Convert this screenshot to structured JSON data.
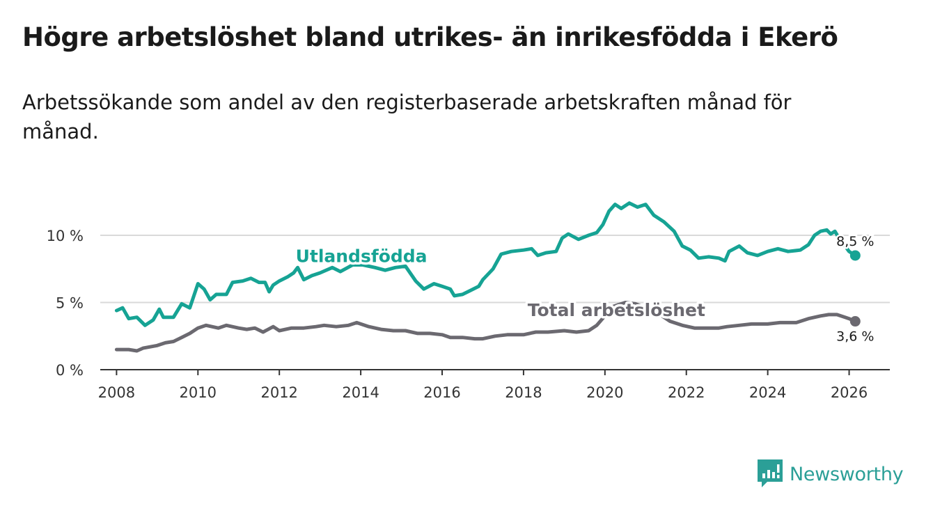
{
  "title": "Högre arbetslöshet bland utrikes- än inrikesfödda i Ekerö",
  "subtitle": "Arbetssökande som andel av den registerbaserade arbetskraften månad för månad.",
  "brand": {
    "name": "Newsworthy",
    "color": "#2b9f97"
  },
  "chart_data": {
    "type": "line",
    "title": "Högre arbetslöshet bland utrikes- än inrikesfödda i Ekerö",
    "xlabel": "",
    "ylabel": "",
    "xlim": [
      2007.6,
      2027.0
    ],
    "ylim": [
      0,
      13
    ],
    "grid": true,
    "x_ticks": [
      2008,
      2010,
      2012,
      2014,
      2016,
      2018,
      2020,
      2022,
      2024,
      2026
    ],
    "x_tick_labels": [
      "2008",
      "2010",
      "2012",
      "2014",
      "2016",
      "2018",
      "2020",
      "2022",
      "2024",
      "2026"
    ],
    "y_ticks": [
      0,
      5,
      10
    ],
    "y_tick_labels": [
      "0 %",
      "5 %",
      "10 %"
    ],
    "series": [
      {
        "name": "Utlandsfödda",
        "label": "Utlandsfödda",
        "color": "#16a394",
        "end_label": "8,5 %",
        "end_value": 8.5,
        "end_x": 2026.15,
        "points": [
          [
            2008.0,
            4.4
          ],
          [
            2008.15,
            4.6
          ],
          [
            2008.3,
            3.8
          ],
          [
            2008.5,
            3.9
          ],
          [
            2008.7,
            3.3
          ],
          [
            2008.9,
            3.7
          ],
          [
            2009.05,
            4.5
          ],
          [
            2009.15,
            3.9
          ],
          [
            2009.4,
            3.9
          ],
          [
            2009.6,
            4.9
          ],
          [
            2009.8,
            4.6
          ],
          [
            2010.0,
            6.4
          ],
          [
            2010.15,
            6.0
          ],
          [
            2010.3,
            5.2
          ],
          [
            2010.45,
            5.6
          ],
          [
            2010.7,
            5.6
          ],
          [
            2010.85,
            6.5
          ],
          [
            2011.1,
            6.6
          ],
          [
            2011.3,
            6.8
          ],
          [
            2011.5,
            6.5
          ],
          [
            2011.65,
            6.5
          ],
          [
            2011.75,
            5.8
          ],
          [
            2011.85,
            6.3
          ],
          [
            2012.0,
            6.6
          ],
          [
            2012.2,
            6.9
          ],
          [
            2012.35,
            7.2
          ],
          [
            2012.45,
            7.6
          ],
          [
            2012.6,
            6.7
          ],
          [
            2012.8,
            7.0
          ],
          [
            2013.0,
            7.2
          ],
          [
            2013.3,
            7.6
          ],
          [
            2013.5,
            7.3
          ],
          [
            2013.8,
            7.8
          ],
          [
            2014.05,
            7.8
          ],
          [
            2014.35,
            7.6
          ],
          [
            2014.6,
            7.4
          ],
          [
            2014.85,
            7.6
          ],
          [
            2015.1,
            7.7
          ],
          [
            2015.35,
            6.6
          ],
          [
            2015.55,
            6.0
          ],
          [
            2015.8,
            6.4
          ],
          [
            2016.0,
            6.2
          ],
          [
            2016.2,
            6.0
          ],
          [
            2016.3,
            5.5
          ],
          [
            2016.5,
            5.6
          ],
          [
            2016.7,
            5.9
          ],
          [
            2016.9,
            6.2
          ],
          [
            2017.0,
            6.7
          ],
          [
            2017.25,
            7.5
          ],
          [
            2017.45,
            8.6
          ],
          [
            2017.7,
            8.8
          ],
          [
            2018.0,
            8.9
          ],
          [
            2018.2,
            9.0
          ],
          [
            2018.35,
            8.5
          ],
          [
            2018.55,
            8.7
          ],
          [
            2018.8,
            8.8
          ],
          [
            2018.95,
            9.8
          ],
          [
            2019.1,
            10.1
          ],
          [
            2019.35,
            9.7
          ],
          [
            2019.6,
            10.0
          ],
          [
            2019.8,
            10.2
          ],
          [
            2019.95,
            10.8
          ],
          [
            2020.1,
            11.8
          ],
          [
            2020.25,
            12.3
          ],
          [
            2020.4,
            12.0
          ],
          [
            2020.6,
            12.4
          ],
          [
            2020.8,
            12.1
          ],
          [
            2021.0,
            12.3
          ],
          [
            2021.2,
            11.5
          ],
          [
            2021.45,
            11.0
          ],
          [
            2021.7,
            10.3
          ],
          [
            2021.9,
            9.2
          ],
          [
            2022.1,
            8.9
          ],
          [
            2022.3,
            8.3
          ],
          [
            2022.55,
            8.4
          ],
          [
            2022.8,
            8.3
          ],
          [
            2022.95,
            8.1
          ],
          [
            2023.05,
            8.8
          ],
          [
            2023.3,
            9.2
          ],
          [
            2023.5,
            8.7
          ],
          [
            2023.75,
            8.5
          ],
          [
            2024.0,
            8.8
          ],
          [
            2024.25,
            9.0
          ],
          [
            2024.5,
            8.8
          ],
          [
            2024.8,
            8.9
          ],
          [
            2025.0,
            9.3
          ],
          [
            2025.15,
            10.0
          ],
          [
            2025.3,
            10.3
          ],
          [
            2025.45,
            10.4
          ],
          [
            2025.55,
            10.1
          ],
          [
            2025.65,
            10.3
          ],
          [
            2025.75,
            9.8
          ],
          [
            2025.9,
            9.2
          ],
          [
            2026.0,
            8.8
          ],
          [
            2026.15,
            8.5
          ]
        ]
      },
      {
        "name": "Total arbetslöshet",
        "label": "Total arbetslöshet",
        "color": "#6b6970",
        "end_label": "3,6 %",
        "end_value": 3.6,
        "end_x": 2026.15,
        "points": [
          [
            2008.0,
            1.5
          ],
          [
            2008.3,
            1.5
          ],
          [
            2008.5,
            1.4
          ],
          [
            2008.65,
            1.6
          ],
          [
            2009.0,
            1.8
          ],
          [
            2009.2,
            2.0
          ],
          [
            2009.4,
            2.1
          ],
          [
            2009.6,
            2.4
          ],
          [
            2009.8,
            2.7
          ],
          [
            2010.0,
            3.1
          ],
          [
            2010.2,
            3.3
          ],
          [
            2010.5,
            3.1
          ],
          [
            2010.7,
            3.3
          ],
          [
            2011.0,
            3.1
          ],
          [
            2011.2,
            3.0
          ],
          [
            2011.4,
            3.1
          ],
          [
            2011.6,
            2.8
          ],
          [
            2011.85,
            3.2
          ],
          [
            2012.0,
            2.9
          ],
          [
            2012.3,
            3.1
          ],
          [
            2012.6,
            3.1
          ],
          [
            2012.9,
            3.2
          ],
          [
            2013.1,
            3.3
          ],
          [
            2013.4,
            3.2
          ],
          [
            2013.7,
            3.3
          ],
          [
            2013.9,
            3.5
          ],
          [
            2014.2,
            3.2
          ],
          [
            2014.5,
            3.0
          ],
          [
            2014.8,
            2.9
          ],
          [
            2015.1,
            2.9
          ],
          [
            2015.4,
            2.7
          ],
          [
            2015.7,
            2.7
          ],
          [
            2016.0,
            2.6
          ],
          [
            2016.2,
            2.4
          ],
          [
            2016.5,
            2.4
          ],
          [
            2016.8,
            2.3
          ],
          [
            2017.0,
            2.3
          ],
          [
            2017.3,
            2.5
          ],
          [
            2017.6,
            2.6
          ],
          [
            2018.0,
            2.6
          ],
          [
            2018.3,
            2.8
          ],
          [
            2018.6,
            2.8
          ],
          [
            2019.0,
            2.9
          ],
          [
            2019.3,
            2.8
          ],
          [
            2019.6,
            2.9
          ],
          [
            2019.8,
            3.3
          ],
          [
            2020.0,
            4.0
          ],
          [
            2020.2,
            4.7
          ],
          [
            2020.5,
            5.0
          ],
          [
            2020.75,
            4.9
          ],
          [
            2021.0,
            4.6
          ],
          [
            2021.3,
            4.2
          ],
          [
            2021.6,
            3.6
          ],
          [
            2021.9,
            3.3
          ],
          [
            2022.2,
            3.1
          ],
          [
            2022.5,
            3.1
          ],
          [
            2022.8,
            3.1
          ],
          [
            2023.0,
            3.2
          ],
          [
            2023.3,
            3.3
          ],
          [
            2023.6,
            3.4
          ],
          [
            2024.0,
            3.4
          ],
          [
            2024.3,
            3.5
          ],
          [
            2024.7,
            3.5
          ],
          [
            2025.0,
            3.8
          ],
          [
            2025.3,
            4.0
          ],
          [
            2025.5,
            4.1
          ],
          [
            2025.7,
            4.1
          ],
          [
            2025.9,
            3.9
          ],
          [
            2026.0,
            3.8
          ],
          [
            2026.15,
            3.6
          ]
        ]
      }
    ]
  }
}
